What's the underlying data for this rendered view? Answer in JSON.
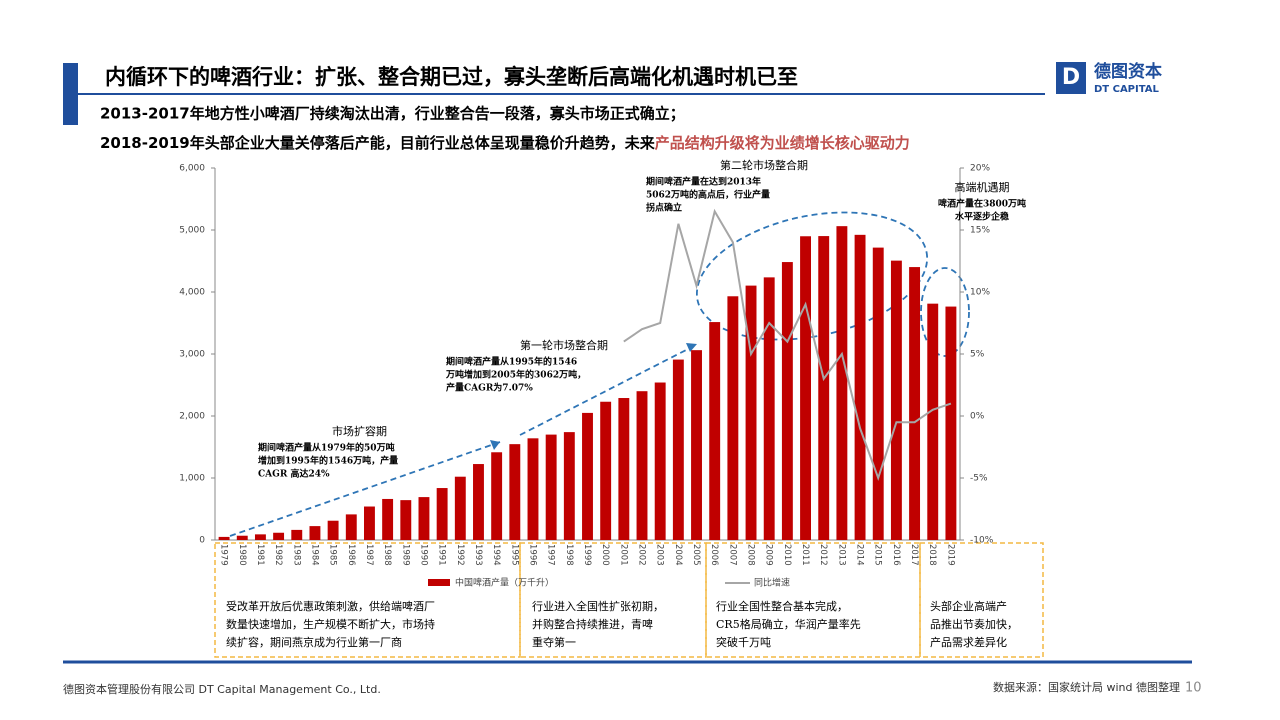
{
  "header": {
    "title": "内循环下的啤酒行业：扩张、整合期已过，寡头垄断后高端化机遇时机已至",
    "logo_cn": "德图资本",
    "logo_en": "DT CAPITAL"
  },
  "subtitle": {
    "line1": "2013-2017年地方性小啤酒厂持续淘汰出清，行业整合告一段落，寡头市场正式确立；",
    "line2": "2018-2019年头部企业大量关停落后产能，目前行业总体呈现量稳价升趋势，未来",
    "line2_highlight": "产品结构升级将为业绩增长核心驱动力"
  },
  "chart_data": {
    "type": "bar",
    "categories": [
      "1979",
      "1980",
      "1981",
      "1982",
      "1983",
      "1984",
      "1985",
      "1986",
      "1987",
      "1988",
      "1989",
      "1990",
      "1991",
      "1992",
      "1993",
      "1994",
      "1995",
      "1996",
      "1997",
      "1998",
      "1999",
      "2000",
      "2001",
      "2002",
      "2003",
      "2004",
      "2005",
      "2006",
      "2007",
      "2008",
      "2009",
      "2010",
      "2011",
      "2012",
      "2013",
      "2014",
      "2015",
      "2016",
      "2017",
      "2018",
      "2019"
    ],
    "series": [
      {
        "name": "中国啤酒产量（万千升）",
        "color": "#c00000",
        "values": [
          50,
          69,
          91,
          117,
          163,
          224,
          311,
          413,
          540,
          662,
          643,
          692,
          838,
          1021,
          1225,
          1415,
          1546,
          1640,
          1700,
          1740,
          2050,
          2230,
          2290,
          2400,
          2540,
          2910,
          3062,
          3515,
          3931,
          4103,
          4236,
          4483,
          4899,
          4902,
          5062,
          4922,
          4716,
          4506,
          4402,
          3812,
          3765
        ]
      },
      {
        "name": "同比增速",
        "color": "#a6a6a6",
        "axis": "y2",
        "values": [
          null,
          null,
          null,
          null,
          null,
          null,
          null,
          null,
          null,
          null,
          null,
          null,
          null,
          null,
          null,
          null,
          null,
          null,
          null,
          null,
          null,
          null,
          6,
          7,
          7.5,
          15.5,
          10.5,
          16.5,
          14,
          5,
          7.5,
          6,
          9,
          3,
          5,
          -1,
          -5,
          -0.5,
          -0.5,
          0.5,
          1
        ]
      }
    ],
    "ylim": [
      0,
      6000
    ],
    "yticks": [
      0,
      {
        "value": 1000,
        "label": "1,000"
      },
      {
        "value": 2000,
        "label": "2,000"
      },
      {
        "value": 3000,
        "label": "3,000"
      },
      {
        "value": 4000,
        "label": "4,000"
      },
      {
        "value": 5000,
        "label": "5,000"
      },
      {
        "value": 6000,
        "label": "6,000"
      }
    ],
    "y2lim": [
      -10,
      20
    ],
    "y2ticks": [
      {
        "value": -10,
        "label": "-10%"
      },
      {
        "value": -5,
        "label": "-5%"
      },
      {
        "value": 0,
        "label": "0%"
      },
      {
        "value": 5,
        "label": "5%"
      },
      {
        "value": 10,
        "label": "10%"
      },
      {
        "value": 15,
        "label": "15%"
      },
      {
        "value": 20,
        "label": "20%"
      }
    ],
    "annotations": [
      {
        "title": "市场扩容期",
        "lines": [
          "期间啤酒产量从1979年的50万吨",
          "增加到1995年的1546万吨，产量",
          "CAGR 高达24%"
        ]
      },
      {
        "title": "第一轮市场整合期",
        "lines": [
          "期间啤酒产量从1995年的1546",
          "万吨增加到2005年的3062万吨，",
          "产量CAGR为7.07%"
        ]
      },
      {
        "title": "第二轮市场整合期",
        "lines": [
          "期间啤酒产量在达到2013年",
          "5062万吨的高点后，行业产量",
          "拐点确立"
        ]
      },
      {
        "title": "高端机遇期",
        "lines": [
          "啤酒产量在3800万吨",
          "水平逐步企稳"
        ]
      }
    ]
  },
  "notes": [
    [
      "受改革开放后优惠政策刺激，供给端啤酒厂",
      "数量快速增加，生产规模不断扩大，市场持",
      "续扩容，期间燕京成为行业第一厂商"
    ],
    [
      "行业进入全国性扩张初期，",
      "并购整合持续推进，青啤",
      "重夺第一"
    ],
    [
      "行业全国性整合基本完成，",
      "CR5格局确立，华润产量率先",
      "突破千万吨"
    ],
    [
      "头部企业高端产",
      "品推出节奏加快，",
      "产品需求差异化"
    ]
  ],
  "footer": {
    "company": "德图资本管理股份有限公司 DT Capital Management Co., Ltd.",
    "source": "数据来源：国家统计局 wind 德图整理",
    "page": "10"
  }
}
